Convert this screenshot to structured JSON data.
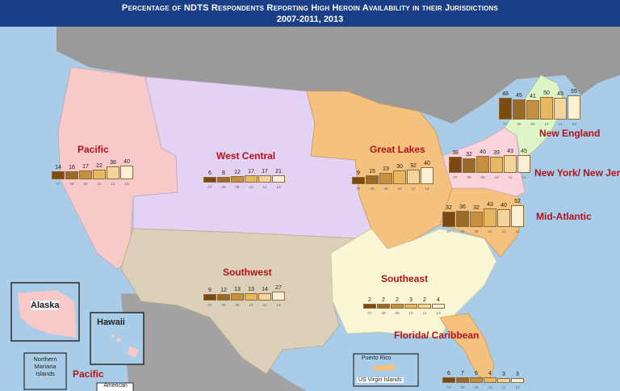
{
  "title": {
    "line1": "Percentage of NDTS Respondents Reporting High Heroin Availability in their Jurisdictions",
    "line2": "2007-2011, 2013"
  },
  "regions": [
    {
      "key": "pacific",
      "name": "Pacific",
      "values": [
        14,
        16,
        17,
        22,
        38,
        40
      ],
      "color": "#f7c9c9"
    },
    {
      "key": "west-central",
      "name": "West Central",
      "values": [
        6,
        8,
        12,
        17,
        17,
        21
      ],
      "color": "#e4d2f2"
    },
    {
      "key": "great-lakes",
      "name": "Great Lakes",
      "values": [
        9,
        15,
        23,
        30,
        32,
        40
      ],
      "color": "#f4c27e"
    },
    {
      "key": "new-england",
      "name": "New England",
      "values": [
        48,
        45,
        41,
        50,
        49,
        55
      ],
      "color": "#dff5c8"
    },
    {
      "key": "new-york-new-jersey",
      "name": "New York/ New Jersey",
      "values": [
        38,
        32,
        40,
        39,
        43,
        45
      ],
      "color": "#f9d2dc"
    },
    {
      "key": "mid-atlantic",
      "name": "Mid-Atlantic",
      "values": [
        32,
        36,
        32,
        43,
        40,
        52
      ],
      "color": "#f4c27e"
    },
    {
      "key": "southwest",
      "name": "Southwest",
      "values": [
        9,
        12,
        13,
        13,
        14,
        27
      ],
      "color": "#ddd0b8"
    },
    {
      "key": "southeast",
      "name": "Southeast",
      "values": [
        2,
        2,
        2,
        3,
        2,
        4
      ],
      "color": "#f8f6d4"
    },
    {
      "key": "florida-caribbean",
      "name": "Florida/ Caribbean",
      "values": [
        6,
        7,
        6,
        4,
        3,
        3
      ],
      "color": "#f4c27e"
    }
  ],
  "insets": {
    "alaska": "Alaska",
    "hawaii": "Hawaii",
    "northern_mariana": "Northern Mariana Islands",
    "pacific": "Pacific",
    "american_samoa": "American",
    "puerto_rico": "Puerto Rico",
    "us_virgin_islands": "US Virgin Islands"
  },
  "bar_colors": [
    "#7a4a12",
    "#9b6a28",
    "#c79040",
    "#e8b860",
    "#f3d49b",
    "#fcefd6"
  ],
  "years": [
    "07",
    "08",
    "09",
    "10",
    "11",
    "13"
  ]
}
